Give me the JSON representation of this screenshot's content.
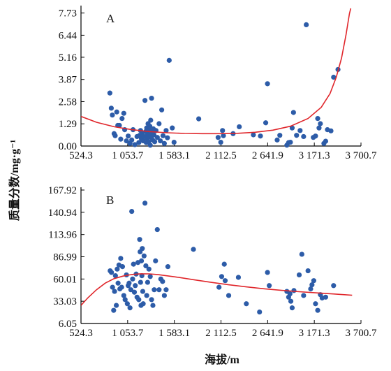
{
  "colors": {
    "points": "#2d5ca8",
    "curve": "#e0262b",
    "axis": "#000000"
  },
  "axes": {
    "xlabel": "海拔/m",
    "ylabel": "质量分数/mg·g⁻¹"
  },
  "chart_data": [
    {
      "type": "scatter",
      "panel_label": "A",
      "x_ticks": [
        {
          "value": 524.3,
          "label": "524.3"
        },
        {
          "value": 1053.7,
          "label": "1 053.7"
        },
        {
          "value": 1583.1,
          "label": "1 583.1"
        },
        {
          "value": 2112.5,
          "label": "2 112.5"
        },
        {
          "value": 2641.9,
          "label": "2 641.9"
        },
        {
          "value": 3171.3,
          "label": "3 171.3"
        },
        {
          "value": 3700.7,
          "label": "3 700.7"
        }
      ],
      "y_ticks": [
        {
          "value": 0.0,
          "label": "0.00"
        },
        {
          "value": 1.29,
          "label": "1.29"
        },
        {
          "value": 2.58,
          "label": "2.58"
        },
        {
          "value": 3.87,
          "label": "3.87"
        },
        {
          "value": 5.16,
          "label": "5.16"
        },
        {
          "value": 6.44,
          "label": "6.44"
        },
        {
          "value": 7.73,
          "label": "7.73"
        }
      ],
      "xlim": [
        524.3,
        3700.7
      ],
      "ylim": [
        0.0,
        8.0
      ],
      "points": [
        [
          852,
          3.08
        ],
        [
          868,
          2.2
        ],
        [
          880,
          1.8
        ],
        [
          900,
          0.72
        ],
        [
          912,
          0.6
        ],
        [
          930,
          1.98
        ],
        [
          942,
          1.2
        ],
        [
          960,
          1.2
        ],
        [
          975,
          0.4
        ],
        [
          990,
          1.6
        ],
        [
          1010,
          1.9
        ],
        [
          1020,
          0.95
        ],
        [
          1040,
          0.3
        ],
        [
          1060,
          0.58
        ],
        [
          1080,
          0.15
        ],
        [
          1100,
          0.35
        ],
        [
          1115,
          0.95
        ],
        [
          1135,
          0.08
        ],
        [
          1160,
          0.55
        ],
        [
          1180,
          0.2
        ],
        [
          1190,
          0.62
        ],
        [
          1200,
          0.9
        ],
        [
          1210,
          0.42
        ],
        [
          1220,
          0.73
        ],
        [
          1230,
          0.3
        ],
        [
          1240,
          0.55
        ],
        [
          1250,
          2.65
        ],
        [
          1260,
          0.85
        ],
        [
          1265,
          0.2
        ],
        [
          1270,
          1.05
        ],
        [
          1275,
          0.45
        ],
        [
          1280,
          0.7
        ],
        [
          1285,
          1.3
        ],
        [
          1290,
          0.25
        ],
        [
          1295,
          0.92
        ],
        [
          1300,
          0.6
        ],
        [
          1305,
          1.15
        ],
        [
          1310,
          0.05
        ],
        [
          1315,
          1.5
        ],
        [
          1320,
          0.5
        ],
        [
          1325,
          2.78
        ],
        [
          1330,
          0.8
        ],
        [
          1338,
          0.35
        ],
        [
          1345,
          1.0
        ],
        [
          1352,
          0.65
        ],
        [
          1360,
          0.25
        ],
        [
          1375,
          0.9
        ],
        [
          1390,
          0.5
        ],
        [
          1410,
          1.3
        ],
        [
          1425,
          0.3
        ],
        [
          1440,
          2.1
        ],
        [
          1455,
          0.6
        ],
        [
          1470,
          0.15
        ],
        [
          1490,
          0.9
        ],
        [
          1505,
          0.48
        ],
        [
          1525,
          4.98
        ],
        [
          1560,
          1.05
        ],
        [
          1580,
          0.22
        ],
        [
          1860,
          1.58
        ],
        [
          2080,
          0.5
        ],
        [
          2110,
          0.22
        ],
        [
          2130,
          0.9
        ],
        [
          2140,
          0.6
        ],
        [
          2250,
          0.72
        ],
        [
          2320,
          1.12
        ],
        [
          2480,
          0.65
        ],
        [
          2560,
          0.58
        ],
        [
          2620,
          1.35
        ],
        [
          2640,
          3.62
        ],
        [
          2750,
          0.35
        ],
        [
          2780,
          0.62
        ],
        [
          2860,
          0.05
        ],
        [
          2880,
          0.2
        ],
        [
          2900,
          0.22
        ],
        [
          2920,
          1.05
        ],
        [
          2935,
          1.95
        ],
        [
          2970,
          0.62
        ],
        [
          3010,
          0.9
        ],
        [
          3050,
          0.55
        ],
        [
          3080,
          7.05
        ],
        [
          3160,
          0.5
        ],
        [
          3185,
          0.58
        ],
        [
          3210,
          1.6
        ],
        [
          3225,
          1.05
        ],
        [
          3240,
          1.3
        ],
        [
          3280,
          0.15
        ],
        [
          3300,
          0.28
        ],
        [
          3320,
          0.95
        ],
        [
          3360,
          0.88
        ],
        [
          3390,
          4.0
        ],
        [
          3440,
          4.45
        ]
      ],
      "trend": [
        [
          524.3,
          1.72
        ],
        [
          700,
          1.38
        ],
        [
          900,
          1.12
        ],
        [
          1100,
          0.95
        ],
        [
          1300,
          0.84
        ],
        [
          1500,
          0.77
        ],
        [
          1700,
          0.73
        ],
        [
          1900,
          0.72
        ],
        [
          2100,
          0.72
        ],
        [
          2300,
          0.74
        ],
        [
          2500,
          0.8
        ],
        [
          2700,
          0.92
        ],
        [
          2900,
          1.15
        ],
        [
          3100,
          1.6
        ],
        [
          3250,
          2.25
        ],
        [
          3350,
          3.05
        ],
        [
          3420,
          4.0
        ],
        [
          3480,
          5.1
        ],
        [
          3530,
          6.45
        ],
        [
          3570,
          7.7
        ],
        [
          3585,
          8.0
        ]
      ]
    },
    {
      "type": "scatter",
      "panel_label": "B",
      "x_ticks": [
        {
          "value": 524.3,
          "label": "524.3"
        },
        {
          "value": 1053.7,
          "label": "1 053.7"
        },
        {
          "value": 1583.1,
          "label": "1 583.1"
        },
        {
          "value": 2112.5,
          "label": "2 112.5"
        },
        {
          "value": 2641.9,
          "label": "2 641.9"
        },
        {
          "value": 3171.3,
          "label": "3 171.3"
        },
        {
          "value": 3700.7,
          "label": "3 700.7"
        }
      ],
      "y_ticks": [
        {
          "value": 6.05,
          "label": "6.05"
        },
        {
          "value": 33.03,
          "label": "33.03"
        },
        {
          "value": 60.01,
          "label": "60.01"
        },
        {
          "value": 86.99,
          "label": "86.99"
        },
        {
          "value": 113.96,
          "label": "113.96"
        },
        {
          "value": 140.94,
          "label": "140.94"
        },
        {
          "value": 167.92,
          "label": "167.92"
        }
      ],
      "xlim": [
        524.3,
        3700.7
      ],
      "ylim": [
        6.05,
        167.92
      ],
      "points": [
        [
          855,
          70
        ],
        [
          870,
          68
        ],
        [
          882,
          50
        ],
        [
          895,
          22
        ],
        [
          905,
          45
        ],
        [
          915,
          64
        ],
        [
          925,
          28
        ],
        [
          935,
          72
        ],
        [
          945,
          55
        ],
        [
          955,
          77
        ],
        [
          965,
          48
        ],
        [
          975,
          85
        ],
        [
          985,
          50
        ],
        [
          995,
          75
        ],
        [
          1010,
          40
        ],
        [
          1025,
          35
        ],
        [
          1040,
          65
        ],
        [
          1050,
          30
        ],
        [
          1060,
          52
        ],
        [
          1070,
          55
        ],
        [
          1080,
          25
        ],
        [
          1090,
          47
        ],
        [
          1100,
          142
        ],
        [
          1110,
          60
        ],
        [
          1120,
          78
        ],
        [
          1130,
          44
        ],
        [
          1140,
          52
        ],
        [
          1150,
          66
        ],
        [
          1160,
          38
        ],
        [
          1170,
          80
        ],
        [
          1180,
          35
        ],
        [
          1190,
          108
        ],
        [
          1195,
          93
        ],
        [
          1200,
          56
        ],
        [
          1205,
          28
        ],
        [
          1210,
          82
        ],
        [
          1215,
          64
        ],
        [
          1220,
          97
        ],
        [
          1225,
          45
        ],
        [
          1230,
          30
        ],
        [
          1240,
          88
        ],
        [
          1250,
          152
        ],
        [
          1260,
          76
        ],
        [
          1270,
          40
        ],
        [
          1280,
          56
        ],
        [
          1295,
          72
        ],
        [
          1310,
          63
        ],
        [
          1325,
          35
        ],
        [
          1340,
          28
        ],
        [
          1355,
          47
        ],
        [
          1370,
          82
        ],
        [
          1390,
          120
        ],
        [
          1410,
          47
        ],
        [
          1430,
          60
        ],
        [
          1450,
          57
        ],
        [
          1470,
          40
        ],
        [
          1490,
          47
        ],
        [
          1510,
          75
        ],
        [
          1800,
          96
        ],
        [
          2090,
          50
        ],
        [
          2120,
          63
        ],
        [
          2150,
          78
        ],
        [
          2160,
          58
        ],
        [
          2200,
          40
        ],
        [
          2310,
          62
        ],
        [
          2400,
          30
        ],
        [
          2550,
          20
        ],
        [
          2640,
          68
        ],
        [
          2660,
          52
        ],
        [
          2860,
          45
        ],
        [
          2880,
          38
        ],
        [
          2895,
          42
        ],
        [
          2905,
          33
        ],
        [
          2920,
          25
        ],
        [
          2940,
          46
        ],
        [
          3000,
          65
        ],
        [
          3030,
          90
        ],
        [
          3050,
          40
        ],
        [
          3100,
          70
        ],
        [
          3130,
          48
        ],
        [
          3145,
          53
        ],
        [
          3165,
          58
        ],
        [
          3185,
          30
        ],
        [
          3210,
          22
        ],
        [
          3240,
          41
        ],
        [
          3260,
          37
        ],
        [
          3300,
          38
        ],
        [
          3390,
          52
        ]
      ],
      "trend": [
        [
          524.3,
          28
        ],
        [
          600,
          37
        ],
        [
          700,
          47
        ],
        [
          800,
          55
        ],
        [
          900,
          60.5
        ],
        [
          1000,
          63.5
        ],
        [
          1100,
          65.5
        ],
        [
          1200,
          66.3
        ],
        [
          1300,
          66.2
        ],
        [
          1400,
          65.3
        ],
        [
          1600,
          62.5
        ],
        [
          1800,
          59.2
        ],
        [
          2000,
          56
        ],
        [
          2200,
          53
        ],
        [
          2400,
          50.5
        ],
        [
          2600,
          48.2
        ],
        [
          2800,
          46.2
        ],
        [
          3000,
          44.6
        ],
        [
          3200,
          43.2
        ],
        [
          3400,
          41.8
        ],
        [
          3600,
          40.3
        ]
      ]
    }
  ]
}
